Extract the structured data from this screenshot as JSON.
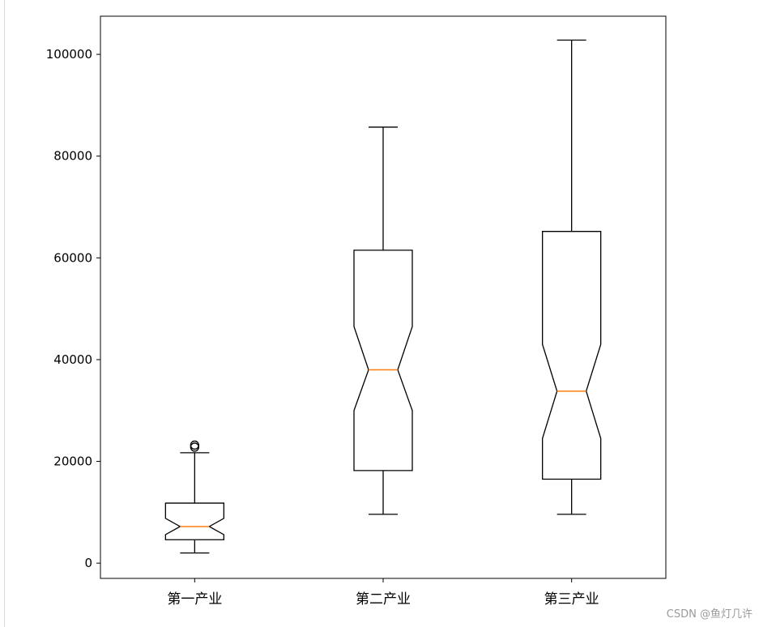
{
  "chart_data": {
    "type": "boxplot",
    "title": "",
    "xlabel": "",
    "ylabel": "",
    "ylim": [
      -3000,
      107500
    ],
    "yticks": [
      0,
      20000,
      40000,
      60000,
      80000,
      100000
    ],
    "ytick_labels": [
      "0",
      "20000",
      "40000",
      "60000",
      "80000",
      "100000"
    ],
    "notched": true,
    "grid": false,
    "colors": {
      "box": "#000000",
      "median": "#ff7f0e"
    },
    "categories": [
      "第一产业",
      "第二产业",
      "第三产业"
    ],
    "boxes": [
      {
        "category": "第一产业",
        "whisker_low": 2000,
        "q1": 4600,
        "median": 7200,
        "q3": 11800,
        "whisker_high": 21700,
        "notch_low": 5600,
        "notch_high": 8800,
        "outliers": [
          22800,
          23200
        ]
      },
      {
        "category": "第二产业",
        "whisker_low": 9600,
        "q1": 18200,
        "median": 38000,
        "q3": 61500,
        "whisker_high": 85700,
        "notch_low": 30000,
        "notch_high": 46500,
        "outliers": []
      },
      {
        "category": "第三产业",
        "whisker_low": 9600,
        "q1": 16500,
        "median": 33800,
        "q3": 65200,
        "whisker_high": 102800,
        "notch_low": 24500,
        "notch_high": 43000,
        "outliers": []
      }
    ]
  },
  "watermark": "CSDN @鱼灯几许"
}
